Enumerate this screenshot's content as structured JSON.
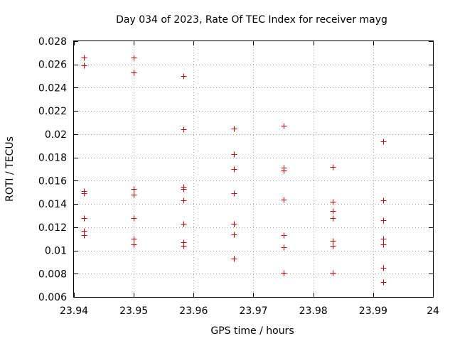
{
  "chart_data": {
    "type": "scatter",
    "title": "Day 034 of 2023, Rate Of TEC Index for receiver mayg",
    "xlabel": "GPS time / hours",
    "ylabel": "ROTI / TECUs",
    "xlim": [
      23.94,
      24.0
    ],
    "ylim": [
      0.006,
      0.028
    ],
    "x_ticks": [
      23.94,
      23.95,
      23.96,
      23.97,
      23.98,
      23.99,
      24.0
    ],
    "x_tick_labels": [
      "23.94",
      "23.95",
      "23.96",
      "23.97",
      "23.98",
      "23.99",
      "24"
    ],
    "y_ticks": [
      0.006,
      0.008,
      0.01,
      0.012,
      0.014,
      0.016,
      0.018,
      0.02,
      0.022,
      0.024,
      0.026,
      0.028
    ],
    "y_tick_labels": [
      "0.006",
      "0.008",
      "0.01",
      "0.012",
      "0.014",
      "0.016",
      "0.018",
      "0.02",
      "0.022",
      "0.024",
      "0.026",
      "0.028"
    ],
    "grid": true,
    "marker": "+",
    "color": "#cc0000",
    "series": [
      {
        "name": "ROTI",
        "points": [
          [
            23.9417,
            0.0266
          ],
          [
            23.9417,
            0.0259
          ],
          [
            23.9417,
            0.0151
          ],
          [
            23.9417,
            0.0149
          ],
          [
            23.9417,
            0.0128
          ],
          [
            23.9417,
            0.0117
          ],
          [
            23.9417,
            0.0113
          ],
          [
            23.95,
            0.0266
          ],
          [
            23.95,
            0.0253
          ],
          [
            23.95,
            0.0153
          ],
          [
            23.95,
            0.0148
          ],
          [
            23.95,
            0.0128
          ],
          [
            23.95,
            0.011
          ],
          [
            23.95,
            0.0105
          ],
          [
            23.9583,
            0.025
          ],
          [
            23.9583,
            0.0204
          ],
          [
            23.9583,
            0.0155
          ],
          [
            23.9583,
            0.0153
          ],
          [
            23.9583,
            0.0143
          ],
          [
            23.9583,
            0.0123
          ],
          [
            23.9583,
            0.0107
          ],
          [
            23.9583,
            0.0104
          ],
          [
            23.9667,
            0.0205
          ],
          [
            23.9667,
            0.0183
          ],
          [
            23.9667,
            0.017
          ],
          [
            23.9667,
            0.0149
          ],
          [
            23.9667,
            0.0123
          ],
          [
            23.9667,
            0.0114
          ],
          [
            23.9667,
            0.0093
          ],
          [
            23.975,
            0.0207
          ],
          [
            23.975,
            0.0171
          ],
          [
            23.975,
            0.0169
          ],
          [
            23.975,
            0.0144
          ],
          [
            23.975,
            0.0113
          ],
          [
            23.975,
            0.0103
          ],
          [
            23.975,
            0.0081
          ],
          [
            23.9833,
            0.0172
          ],
          [
            23.9833,
            0.0142
          ],
          [
            23.9833,
            0.0134
          ],
          [
            23.9833,
            0.0128
          ],
          [
            23.9833,
            0.0108
          ],
          [
            23.9833,
            0.0104
          ],
          [
            23.9833,
            0.0081
          ],
          [
            23.9917,
            0.0194
          ],
          [
            23.9917,
            0.0143
          ],
          [
            23.9917,
            0.0126
          ],
          [
            23.9917,
            0.011
          ],
          [
            23.9917,
            0.0105
          ],
          [
            23.9917,
            0.0085
          ],
          [
            23.9917,
            0.0073
          ]
        ]
      }
    ]
  }
}
